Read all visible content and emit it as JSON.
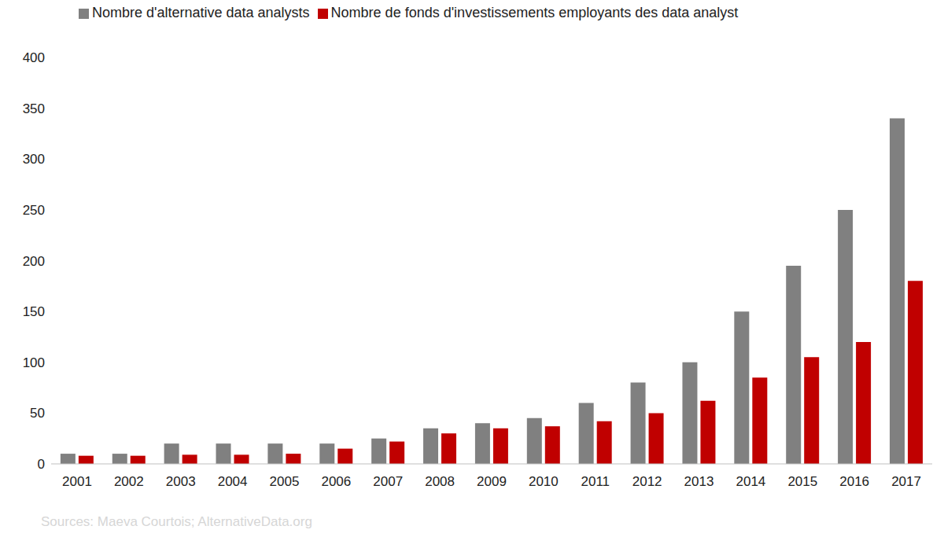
{
  "chart_data": {
    "type": "bar",
    "source": "Sources: Maeva Courtois; AlternativeData.org",
    "categories": [
      "2001",
      "2002",
      "2003",
      "2004",
      "2005",
      "2006",
      "2007",
      "2008",
      "2009",
      "2010",
      "2011",
      "2012",
      "2013",
      "2014",
      "2015",
      "2016",
      "2017"
    ],
    "series": [
      {
        "name": "Nombre d'alternative data analysts",
        "color": "#808080",
        "values": [
          10,
          10,
          20,
          20,
          20,
          20,
          25,
          35,
          40,
          45,
          60,
          80,
          100,
          150,
          195,
          250,
          340
        ]
      },
      {
        "name": "Nombre de fonds d'investissements employants des data analyst",
        "color": "#c00000",
        "values": [
          8,
          8,
          9,
          9,
          10,
          15,
          22,
          30,
          35,
          37,
          42,
          50,
          62,
          85,
          105,
          120,
          180
        ]
      }
    ],
    "ylim": [
      0,
      400
    ],
    "yticks": [
      0,
      50,
      100,
      150,
      200,
      250,
      300,
      350,
      400
    ],
    "grid": false,
    "legend": "top"
  }
}
